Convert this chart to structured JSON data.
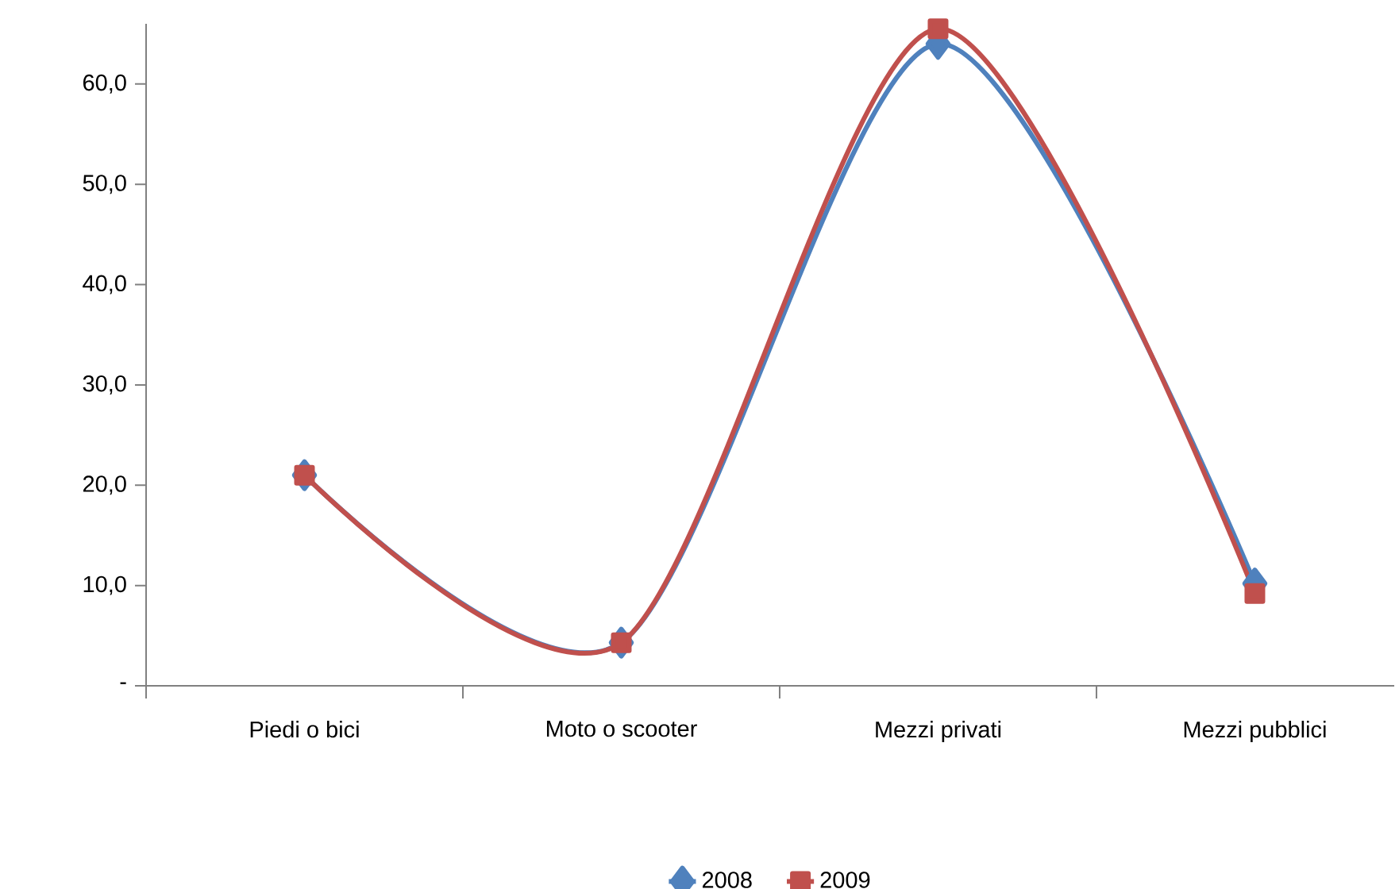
{
  "chart_data": {
    "type": "line",
    "categories": [
      "Piedi o bici",
      "Moto o scooter",
      "Mezzi privati",
      "Mezzi pubblici"
    ],
    "series": [
      {
        "name": "2008",
        "color": "#4f81bd",
        "marker": "diamond",
        "values": [
          21.0,
          4.3,
          64.0,
          10.2
        ]
      },
      {
        "name": "2009",
        "color": "#c0504d",
        "marker": "square",
        "values": [
          21.0,
          4.3,
          65.5,
          9.2
        ]
      }
    ],
    "ylim": [
      0,
      66
    ],
    "yticks": [
      {
        "value": 0,
        "label": "-"
      },
      {
        "value": 10,
        "label": "10,0"
      },
      {
        "value": 20,
        "label": "20,0"
      },
      {
        "value": 30,
        "label": "30,0"
      },
      {
        "value": 40,
        "label": "40,0"
      },
      {
        "value": 50,
        "label": "50,0"
      },
      {
        "value": 60,
        "label": "60,0"
      }
    ],
    "grid": false,
    "legend": "bottom"
  }
}
